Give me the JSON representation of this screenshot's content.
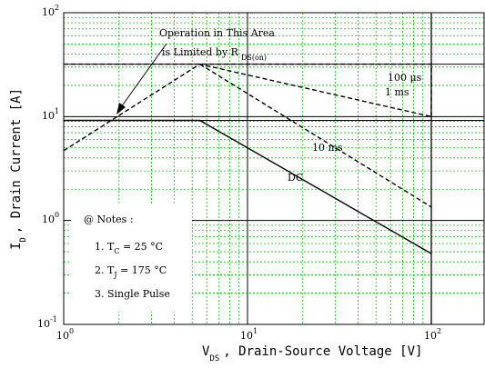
{
  "chart_data": {
    "type": "line",
    "xscale": "log",
    "yscale": "log",
    "xlim": [
      1,
      200
    ],
    "ylim": [
      0.1,
      100
    ],
    "grid": true,
    "x_ticks": [
      {
        "base": "10",
        "exp": "0"
      },
      {
        "base": "10",
        "exp": "1"
      },
      {
        "base": "10",
        "exp": "2"
      }
    ],
    "y_ticks": [
      {
        "base": "10",
        "exp": "-1"
      },
      {
        "base": "10",
        "exp": "0"
      },
      {
        "base": "10",
        "exp": "1"
      },
      {
        "base": "10",
        "exp": "2"
      }
    ],
    "xlabel": {
      "main": "V",
      "sub": "DS",
      "rest": ", Drain-Source Voltage  [V]"
    },
    "ylabel": {
      "main": "I",
      "sub": "D",
      "rest": ", Drain Current  [A]"
    },
    "series": [
      {
        "name": "100 μs",
        "style": "dashed",
        "points": [
          [
            1,
            32
          ],
          [
            100,
            32
          ],
          [
            100,
            10
          ]
        ]
      },
      {
        "name": "1 ms",
        "style": "dashed",
        "points": [
          [
            1,
            4.7
          ],
          [
            5.5,
            32
          ],
          [
            100,
            10
          ]
        ]
      },
      {
        "name": "10 ms",
        "style": "dashed",
        "points": [
          [
            5.5,
            32
          ],
          [
            100,
            1.35
          ]
        ]
      },
      {
        "name": "DC",
        "style": "solid",
        "points": [
          [
            1,
            9.2
          ],
          [
            5.5,
            9.2
          ],
          [
            100,
            0.48
          ]
        ]
      }
    ],
    "reference_lines": {
      "horizontal": [
        9.2,
        32
      ],
      "vertical": [
        100
      ]
    },
    "annotations": {
      "rds_line1": "Operation in This Area",
      "rds_line2": "is Limited by R",
      "rds_sub": "DS(on)",
      "label_100us": "100 μs",
      "label_1ms": "1 ms",
      "label_10ms": "10 ms",
      "label_dc": "DC"
    },
    "notes": {
      "title": "@ Notes :",
      "n1_prefix": "1. T",
      "n1_sub": "C",
      "n1_value": " = 25 °C",
      "n2_prefix": "2. T",
      "n2_sub": "J",
      "n2_value": " = 175 °C",
      "n3": "3. Single Pulse"
    },
    "colors": {
      "line": "#000000",
      "grid": "#00cc00",
      "background": "#ffffff"
    }
  }
}
